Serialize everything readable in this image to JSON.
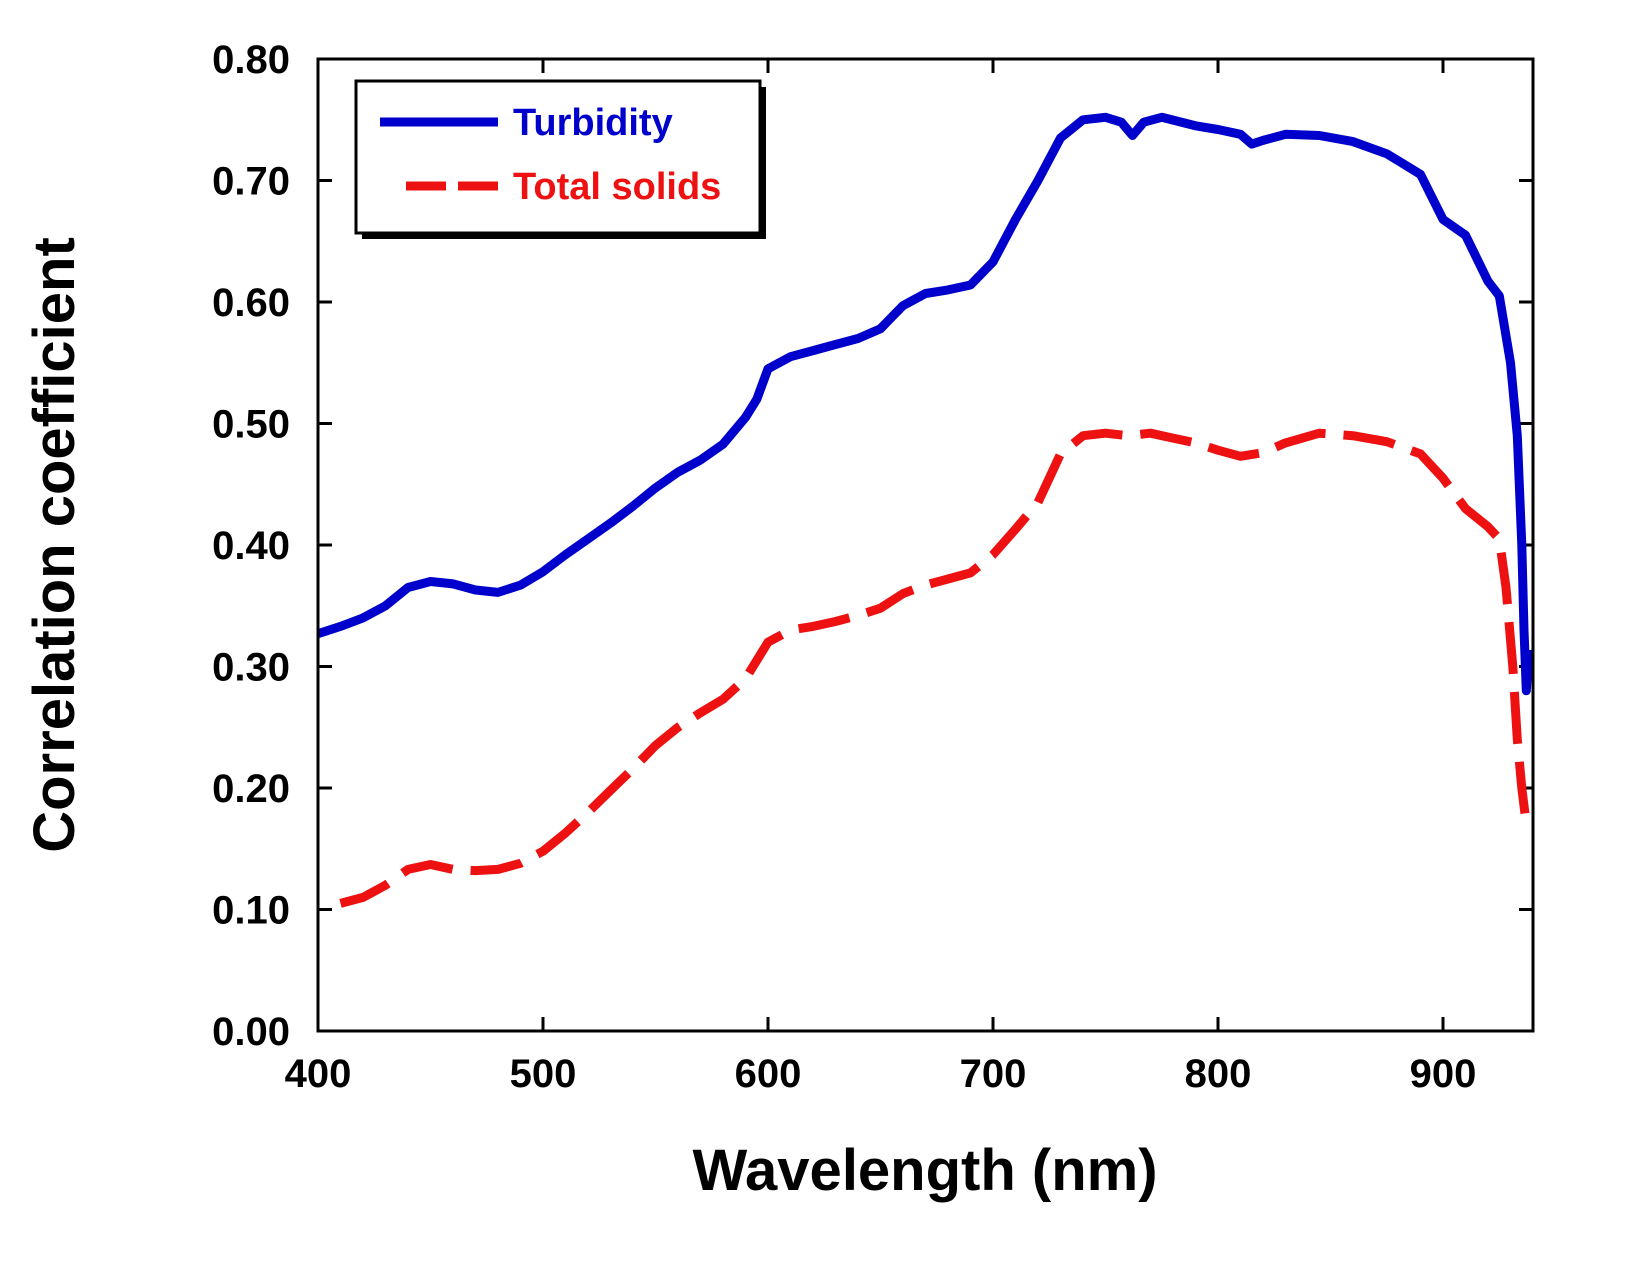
{
  "chart_data": {
    "type": "line",
    "title": "",
    "xlabel": "Wavelength (nm)",
    "ylabel": "Correlation coefficient",
    "xlim": [
      400,
      940
    ],
    "ylim": [
      0,
      0.8
    ],
    "x_ticks": [
      "400",
      "500",
      "600",
      "700",
      "800",
      "900"
    ],
    "x_tick_values": [
      400,
      500,
      600,
      700,
      800,
      900
    ],
    "y_ticks": [
      "0.00",
      "0.10",
      "0.20",
      "0.30",
      "0.40",
      "0.50",
      "0.60",
      "0.70",
      "0.80"
    ],
    "y_tick_values": [
      0,
      0.1,
      0.2,
      0.3,
      0.4,
      0.5,
      0.6,
      0.7,
      0.8
    ],
    "grid": false,
    "legend_position": "top-left",
    "series": [
      {
        "name": "Turbidity",
        "color": "#0000cc",
        "style": "solid",
        "points": [
          [
            400,
            0.327
          ],
          [
            410,
            0.333
          ],
          [
            420,
            0.34
          ],
          [
            430,
            0.35
          ],
          [
            440,
            0.365
          ],
          [
            450,
            0.37
          ],
          [
            460,
            0.368
          ],
          [
            470,
            0.363
          ],
          [
            480,
            0.361
          ],
          [
            490,
            0.367
          ],
          [
            500,
            0.378
          ],
          [
            510,
            0.392
          ],
          [
            520,
            0.405
          ],
          [
            530,
            0.418
          ],
          [
            540,
            0.432
          ],
          [
            550,
            0.447
          ],
          [
            560,
            0.46
          ],
          [
            570,
            0.47
          ],
          [
            580,
            0.483
          ],
          [
            590,
            0.505
          ],
          [
            595,
            0.52
          ],
          [
            600,
            0.545
          ],
          [
            610,
            0.555
          ],
          [
            620,
            0.56
          ],
          [
            630,
            0.565
          ],
          [
            640,
            0.57
          ],
          [
            650,
            0.578
          ],
          [
            660,
            0.597
          ],
          [
            670,
            0.607
          ],
          [
            680,
            0.61
          ],
          [
            690,
            0.614
          ],
          [
            700,
            0.633
          ],
          [
            710,
            0.668
          ],
          [
            720,
            0.7
          ],
          [
            730,
            0.735
          ],
          [
            740,
            0.75
          ],
          [
            750,
            0.752
          ],
          [
            757,
            0.748
          ],
          [
            762,
            0.737
          ],
          [
            767,
            0.748
          ],
          [
            775,
            0.752
          ],
          [
            790,
            0.745
          ],
          [
            800,
            0.742
          ],
          [
            810,
            0.738
          ],
          [
            815,
            0.73
          ],
          [
            820,
            0.733
          ],
          [
            830,
            0.738
          ],
          [
            845,
            0.737
          ],
          [
            860,
            0.732
          ],
          [
            875,
            0.722
          ],
          [
            890,
            0.705
          ],
          [
            900,
            0.668
          ],
          [
            910,
            0.655
          ],
          [
            920,
            0.617
          ],
          [
            925,
            0.605
          ],
          [
            930,
            0.55
          ],
          [
            933,
            0.49
          ],
          [
            935,
            0.4
          ],
          [
            936,
            0.33
          ],
          [
            937,
            0.28
          ],
          [
            938,
            0.31
          ]
        ]
      },
      {
        "name": "Total solids",
        "color": "#ee1111",
        "style": "dashed",
        "points": [
          [
            410,
            0.105
          ],
          [
            420,
            0.11
          ],
          [
            430,
            0.12
          ],
          [
            440,
            0.133
          ],
          [
            450,
            0.137
          ],
          [
            460,
            0.133
          ],
          [
            470,
            0.132
          ],
          [
            480,
            0.133
          ],
          [
            490,
            0.138
          ],
          [
            500,
            0.148
          ],
          [
            510,
            0.163
          ],
          [
            520,
            0.18
          ],
          [
            530,
            0.198
          ],
          [
            540,
            0.216
          ],
          [
            550,
            0.235
          ],
          [
            560,
            0.25
          ],
          [
            570,
            0.262
          ],
          [
            580,
            0.273
          ],
          [
            590,
            0.29
          ],
          [
            600,
            0.32
          ],
          [
            610,
            0.33
          ],
          [
            620,
            0.333
          ],
          [
            630,
            0.337
          ],
          [
            640,
            0.342
          ],
          [
            650,
            0.348
          ],
          [
            660,
            0.36
          ],
          [
            670,
            0.367
          ],
          [
            680,
            0.372
          ],
          [
            690,
            0.377
          ],
          [
            700,
            0.392
          ],
          [
            710,
            0.413
          ],
          [
            720,
            0.435
          ],
          [
            730,
            0.475
          ],
          [
            740,
            0.49
          ],
          [
            750,
            0.492
          ],
          [
            760,
            0.49
          ],
          [
            770,
            0.492
          ],
          [
            780,
            0.488
          ],
          [
            790,
            0.484
          ],
          [
            800,
            0.478
          ],
          [
            810,
            0.473
          ],
          [
            820,
            0.476
          ],
          [
            830,
            0.484
          ],
          [
            845,
            0.492
          ],
          [
            860,
            0.49
          ],
          [
            875,
            0.485
          ],
          [
            890,
            0.475
          ],
          [
            900,
            0.455
          ],
          [
            910,
            0.43
          ],
          [
            920,
            0.415
          ],
          [
            925,
            0.405
          ],
          [
            928,
            0.365
          ],
          [
            931,
            0.3
          ],
          [
            933,
            0.24
          ],
          [
            935,
            0.2
          ],
          [
            937,
            0.17
          ]
        ]
      }
    ]
  }
}
